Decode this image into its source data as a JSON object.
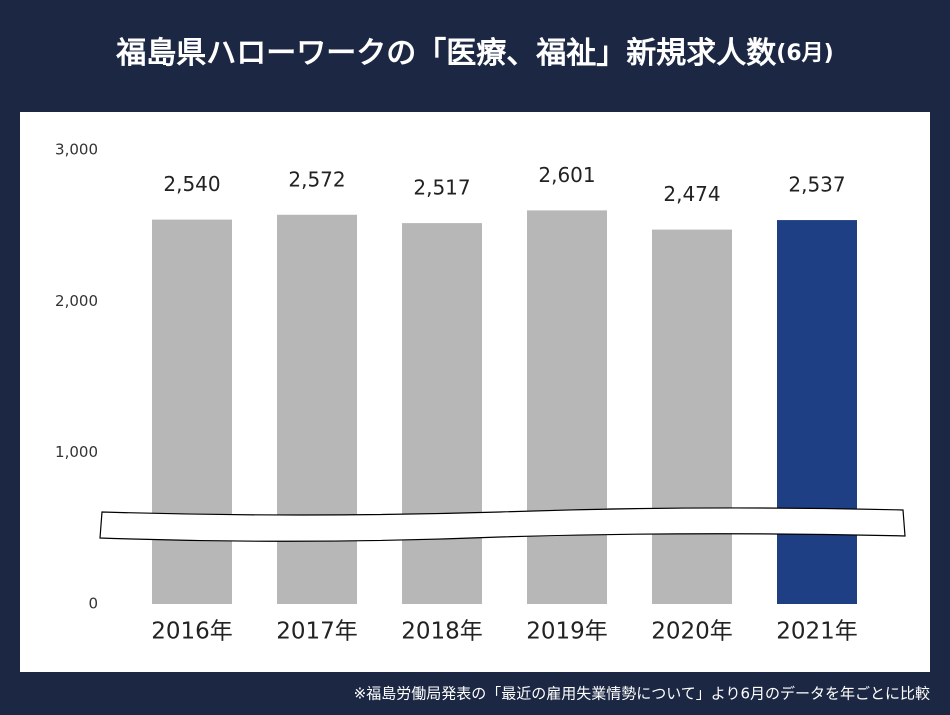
{
  "chart_data": {
    "type": "bar",
    "title": "福島県ハローワークの「医療、福祉」新規求人数",
    "title_note": "(6月)",
    "categories": [
      "2016年",
      "2017年",
      "2018年",
      "2019年",
      "2020年",
      "2021年"
    ],
    "values": [
      2540,
      2572,
      2517,
      2601,
      2474,
      2537
    ],
    "value_labels": [
      "2,540",
      "2,572",
      "2,517",
      "2,601",
      "2,474",
      "2,537"
    ],
    "colors": [
      "#b7b7b7",
      "#b7b7b7",
      "#b7b7b7",
      "#b7b7b7",
      "#b7b7b7",
      "#1f3f84"
    ],
    "ylim": [
      0,
      3000
    ],
    "yticks": [
      0,
      {
        "value": 1000,
        "label": "1,000"
      },
      {
        "value": 2000,
        "label": "2,000"
      },
      {
        "value": 3000,
        "label": "3,000"
      }
    ],
    "grid": false,
    "footnote": "※福島労働局発表の「最近の雇用失業情勢について」より6月のデータを年ごとに比較"
  }
}
